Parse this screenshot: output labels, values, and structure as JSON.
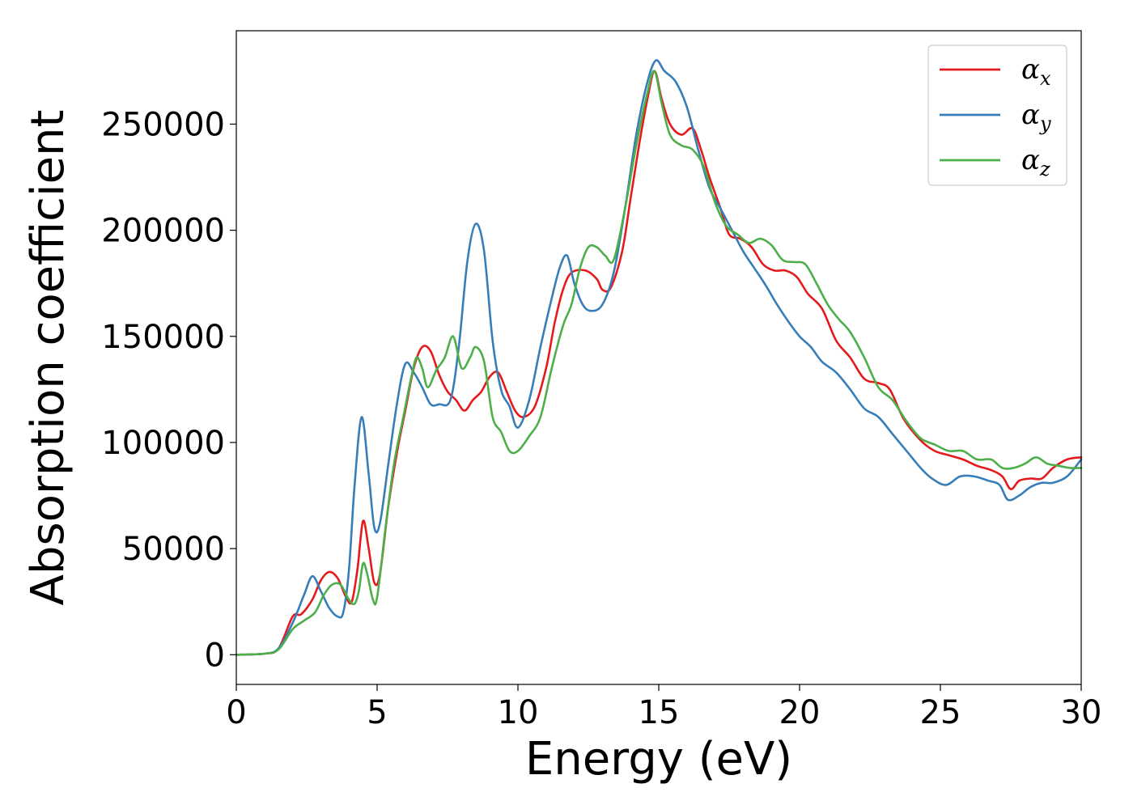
{
  "chart_data": {
    "type": "line",
    "xlabel": "Energy (eV)",
    "ylabel": "Absorption coefficient",
    "xlim": [
      0,
      30
    ],
    "ylim": [
      -14000,
      294000
    ],
    "xticks": [
      "0",
      "5",
      "10",
      "15",
      "20",
      "25",
      "30"
    ],
    "yticks": [
      "0",
      "50000",
      "100000",
      "150000",
      "200000",
      "250000"
    ],
    "grid": false,
    "legend_position": "top-right",
    "series": [
      {
        "name": "α",
        "subscript": "x",
        "color": "#e41a1c",
        "points": [
          [
            0,
            0
          ],
          [
            1,
            500
          ],
          [
            1.5,
            3000
          ],
          [
            2,
            18000
          ],
          [
            2.3,
            19000
          ],
          [
            2.7,
            26000
          ],
          [
            3,
            35000
          ],
          [
            3.3,
            39000
          ],
          [
            3.6,
            36000
          ],
          [
            3.9,
            27000
          ],
          [
            4.1,
            25000
          ],
          [
            4.3,
            40000
          ],
          [
            4.5,
            63000
          ],
          [
            4.7,
            50000
          ],
          [
            4.9,
            34000
          ],
          [
            5.1,
            38000
          ],
          [
            5.4,
            70000
          ],
          [
            5.7,
            95000
          ],
          [
            6,
            115000
          ],
          [
            6.3,
            135000
          ],
          [
            6.6,
            145000
          ],
          [
            6.9,
            143000
          ],
          [
            7.2,
            132000
          ],
          [
            7.5,
            124000
          ],
          [
            7.8,
            120000
          ],
          [
            8.1,
            115000
          ],
          [
            8.4,
            120000
          ],
          [
            8.7,
            124000
          ],
          [
            9,
            131000
          ],
          [
            9.3,
            133000
          ],
          [
            9.6,
            124000
          ],
          [
            9.9,
            115000
          ],
          [
            10.2,
            112000
          ],
          [
            10.6,
            117000
          ],
          [
            11,
            135000
          ],
          [
            11.3,
            156000
          ],
          [
            11.6,
            172000
          ],
          [
            11.9,
            180000
          ],
          [
            12.4,
            181000
          ],
          [
            12.8,
            177000
          ],
          [
            13,
            172000
          ],
          [
            13.3,
            173000
          ],
          [
            13.7,
            190000
          ],
          [
            14,
            215000
          ],
          [
            14.3,
            240000
          ],
          [
            14.6,
            262000
          ],
          [
            14.85,
            275000
          ],
          [
            15.1,
            262000
          ],
          [
            15.4,
            250000
          ],
          [
            15.8,
            245000
          ],
          [
            16.2,
            248000
          ],
          [
            16.5,
            238000
          ],
          [
            16.8,
            225000
          ],
          [
            17.2,
            210000
          ],
          [
            17.5,
            198000
          ],
          [
            17.9,
            196000
          ],
          [
            18.3,
            192000
          ],
          [
            18.7,
            184000
          ],
          [
            19.1,
            181000
          ],
          [
            19.5,
            181000
          ],
          [
            19.9,
            178000
          ],
          [
            20.3,
            170000
          ],
          [
            20.8,
            163000
          ],
          [
            21.3,
            148000
          ],
          [
            21.8,
            140000
          ],
          [
            22.3,
            130000
          ],
          [
            22.8,
            128000
          ],
          [
            23.2,
            125000
          ],
          [
            23.7,
            111000
          ],
          [
            24.3,
            101000
          ],
          [
            24.8,
            96000
          ],
          [
            25.3,
            94000
          ],
          [
            25.8,
            92000
          ],
          [
            26.3,
            89000
          ],
          [
            26.8,
            87000
          ],
          [
            27.2,
            84000
          ],
          [
            27.5,
            78000
          ],
          [
            27.8,
            82000
          ],
          [
            28.2,
            83000
          ],
          [
            28.6,
            83000
          ],
          [
            29,
            88000
          ],
          [
            29.5,
            92000
          ],
          [
            30,
            93000
          ]
        ]
      },
      {
        "name": "α",
        "subscript": "y",
        "color": "#377eb8",
        "points": [
          [
            0,
            0
          ],
          [
            1,
            500
          ],
          [
            1.5,
            3000
          ],
          [
            2,
            15000
          ],
          [
            2.4,
            28000
          ],
          [
            2.7,
            37000
          ],
          [
            3,
            30000
          ],
          [
            3.3,
            22000
          ],
          [
            3.6,
            18000
          ],
          [
            3.8,
            20000
          ],
          [
            4,
            40000
          ],
          [
            4.2,
            80000
          ],
          [
            4.45,
            112000
          ],
          [
            4.7,
            85000
          ],
          [
            4.9,
            60000
          ],
          [
            5.1,
            62000
          ],
          [
            5.4,
            90000
          ],
          [
            5.7,
            118000
          ],
          [
            6,
            137000
          ],
          [
            6.3,
            133000
          ],
          [
            6.6,
            126000
          ],
          [
            6.9,
            118000
          ],
          [
            7.2,
            118000
          ],
          [
            7.6,
            120000
          ],
          [
            7.9,
            145000
          ],
          [
            8.2,
            185000
          ],
          [
            8.5,
            203000
          ],
          [
            8.8,
            190000
          ],
          [
            9.1,
            148000
          ],
          [
            9.4,
            125000
          ],
          [
            9.7,
            117000
          ],
          [
            10,
            107000
          ],
          [
            10.4,
            120000
          ],
          [
            10.8,
            145000
          ],
          [
            11.2,
            168000
          ],
          [
            11.5,
            183000
          ],
          [
            11.75,
            188000
          ],
          [
            12,
            175000
          ],
          [
            12.3,
            165000
          ],
          [
            12.6,
            162000
          ],
          [
            13,
            165000
          ],
          [
            13.4,
            180000
          ],
          [
            13.8,
            210000
          ],
          [
            14.2,
            245000
          ],
          [
            14.6,
            270000
          ],
          [
            14.9,
            280000
          ],
          [
            15.2,
            275000
          ],
          [
            15.6,
            270000
          ],
          [
            16,
            258000
          ],
          [
            16.4,
            238000
          ],
          [
            16.8,
            220000
          ],
          [
            17.2,
            210000
          ],
          [
            17.6,
            200000
          ],
          [
            18,
            190000
          ],
          [
            18.4,
            182000
          ],
          [
            18.8,
            174000
          ],
          [
            19.2,
            165000
          ],
          [
            19.6,
            157000
          ],
          [
            20,
            150000
          ],
          [
            20.4,
            145000
          ],
          [
            20.8,
            138000
          ],
          [
            21.3,
            133000
          ],
          [
            21.8,
            125000
          ],
          [
            22.3,
            116000
          ],
          [
            22.8,
            112000
          ],
          [
            23.3,
            104000
          ],
          [
            23.8,
            96000
          ],
          [
            24.3,
            88000
          ],
          [
            24.7,
            83000
          ],
          [
            25.2,
            80000
          ],
          [
            25.7,
            84000
          ],
          [
            26.2,
            84000
          ],
          [
            26.7,
            82000
          ],
          [
            27.1,
            80000
          ],
          [
            27.4,
            73000
          ],
          [
            27.8,
            75000
          ],
          [
            28.2,
            79000
          ],
          [
            28.6,
            81000
          ],
          [
            29,
            81000
          ],
          [
            29.5,
            84000
          ],
          [
            30,
            92000
          ]
        ]
      },
      {
        "name": "α",
        "subscript": "z",
        "color": "#4daf4a",
        "points": [
          [
            0,
            0
          ],
          [
            1,
            500
          ],
          [
            1.5,
            2500
          ],
          [
            2,
            12000
          ],
          [
            2.4,
            16000
          ],
          [
            2.8,
            20000
          ],
          [
            3.1,
            28000
          ],
          [
            3.4,
            33000
          ],
          [
            3.7,
            33000
          ],
          [
            4,
            26000
          ],
          [
            4.2,
            24000
          ],
          [
            4.35,
            30000
          ],
          [
            4.5,
            43000
          ],
          [
            4.65,
            38000
          ],
          [
            4.85,
            26000
          ],
          [
            5,
            27000
          ],
          [
            5.3,
            60000
          ],
          [
            5.6,
            90000
          ],
          [
            5.9,
            110000
          ],
          [
            6.2,
            130000
          ],
          [
            6.4,
            140000
          ],
          [
            6.6,
            135000
          ],
          [
            6.8,
            126000
          ],
          [
            7.1,
            134000
          ],
          [
            7.4,
            140000
          ],
          [
            7.7,
            150000
          ],
          [
            8,
            135000
          ],
          [
            8.3,
            140000
          ],
          [
            8.5,
            145000
          ],
          [
            8.8,
            138000
          ],
          [
            9.1,
            112000
          ],
          [
            9.4,
            105000
          ],
          [
            9.7,
            96000
          ],
          [
            10,
            96000
          ],
          [
            10.4,
            103000
          ],
          [
            10.8,
            112000
          ],
          [
            11.2,
            135000
          ],
          [
            11.6,
            155000
          ],
          [
            11.9,
            165000
          ],
          [
            12.2,
            182000
          ],
          [
            12.5,
            192000
          ],
          [
            12.8,
            192000
          ],
          [
            13.1,
            188000
          ],
          [
            13.4,
            186000
          ],
          [
            13.8,
            210000
          ],
          [
            14.2,
            240000
          ],
          [
            14.6,
            265000
          ],
          [
            14.85,
            275000
          ],
          [
            15.1,
            260000
          ],
          [
            15.4,
            245000
          ],
          [
            15.8,
            240000
          ],
          [
            16.2,
            238000
          ],
          [
            16.6,
            230000
          ],
          [
            17,
            213000
          ],
          [
            17.4,
            202000
          ],
          [
            17.8,
            198000
          ],
          [
            18.2,
            194000
          ],
          [
            18.6,
            196000
          ],
          [
            19,
            193000
          ],
          [
            19.4,
            186000
          ],
          [
            19.8,
            185000
          ],
          [
            20.2,
            184000
          ],
          [
            20.6,
            175000
          ],
          [
            21,
            165000
          ],
          [
            21.4,
            158000
          ],
          [
            21.8,
            152000
          ],
          [
            22.3,
            140000
          ],
          [
            22.8,
            126000
          ],
          [
            23.3,
            120000
          ],
          [
            23.8,
            110000
          ],
          [
            24.3,
            102000
          ],
          [
            24.8,
            99000
          ],
          [
            25.3,
            96000
          ],
          [
            25.8,
            96000
          ],
          [
            26.3,
            92000
          ],
          [
            26.8,
            92000
          ],
          [
            27.2,
            88000
          ],
          [
            27.6,
            88000
          ],
          [
            28,
            90000
          ],
          [
            28.4,
            93000
          ],
          [
            28.8,
            90000
          ],
          [
            29.2,
            89000
          ],
          [
            29.6,
            88000
          ],
          [
            30,
            88000
          ]
        ]
      }
    ]
  }
}
